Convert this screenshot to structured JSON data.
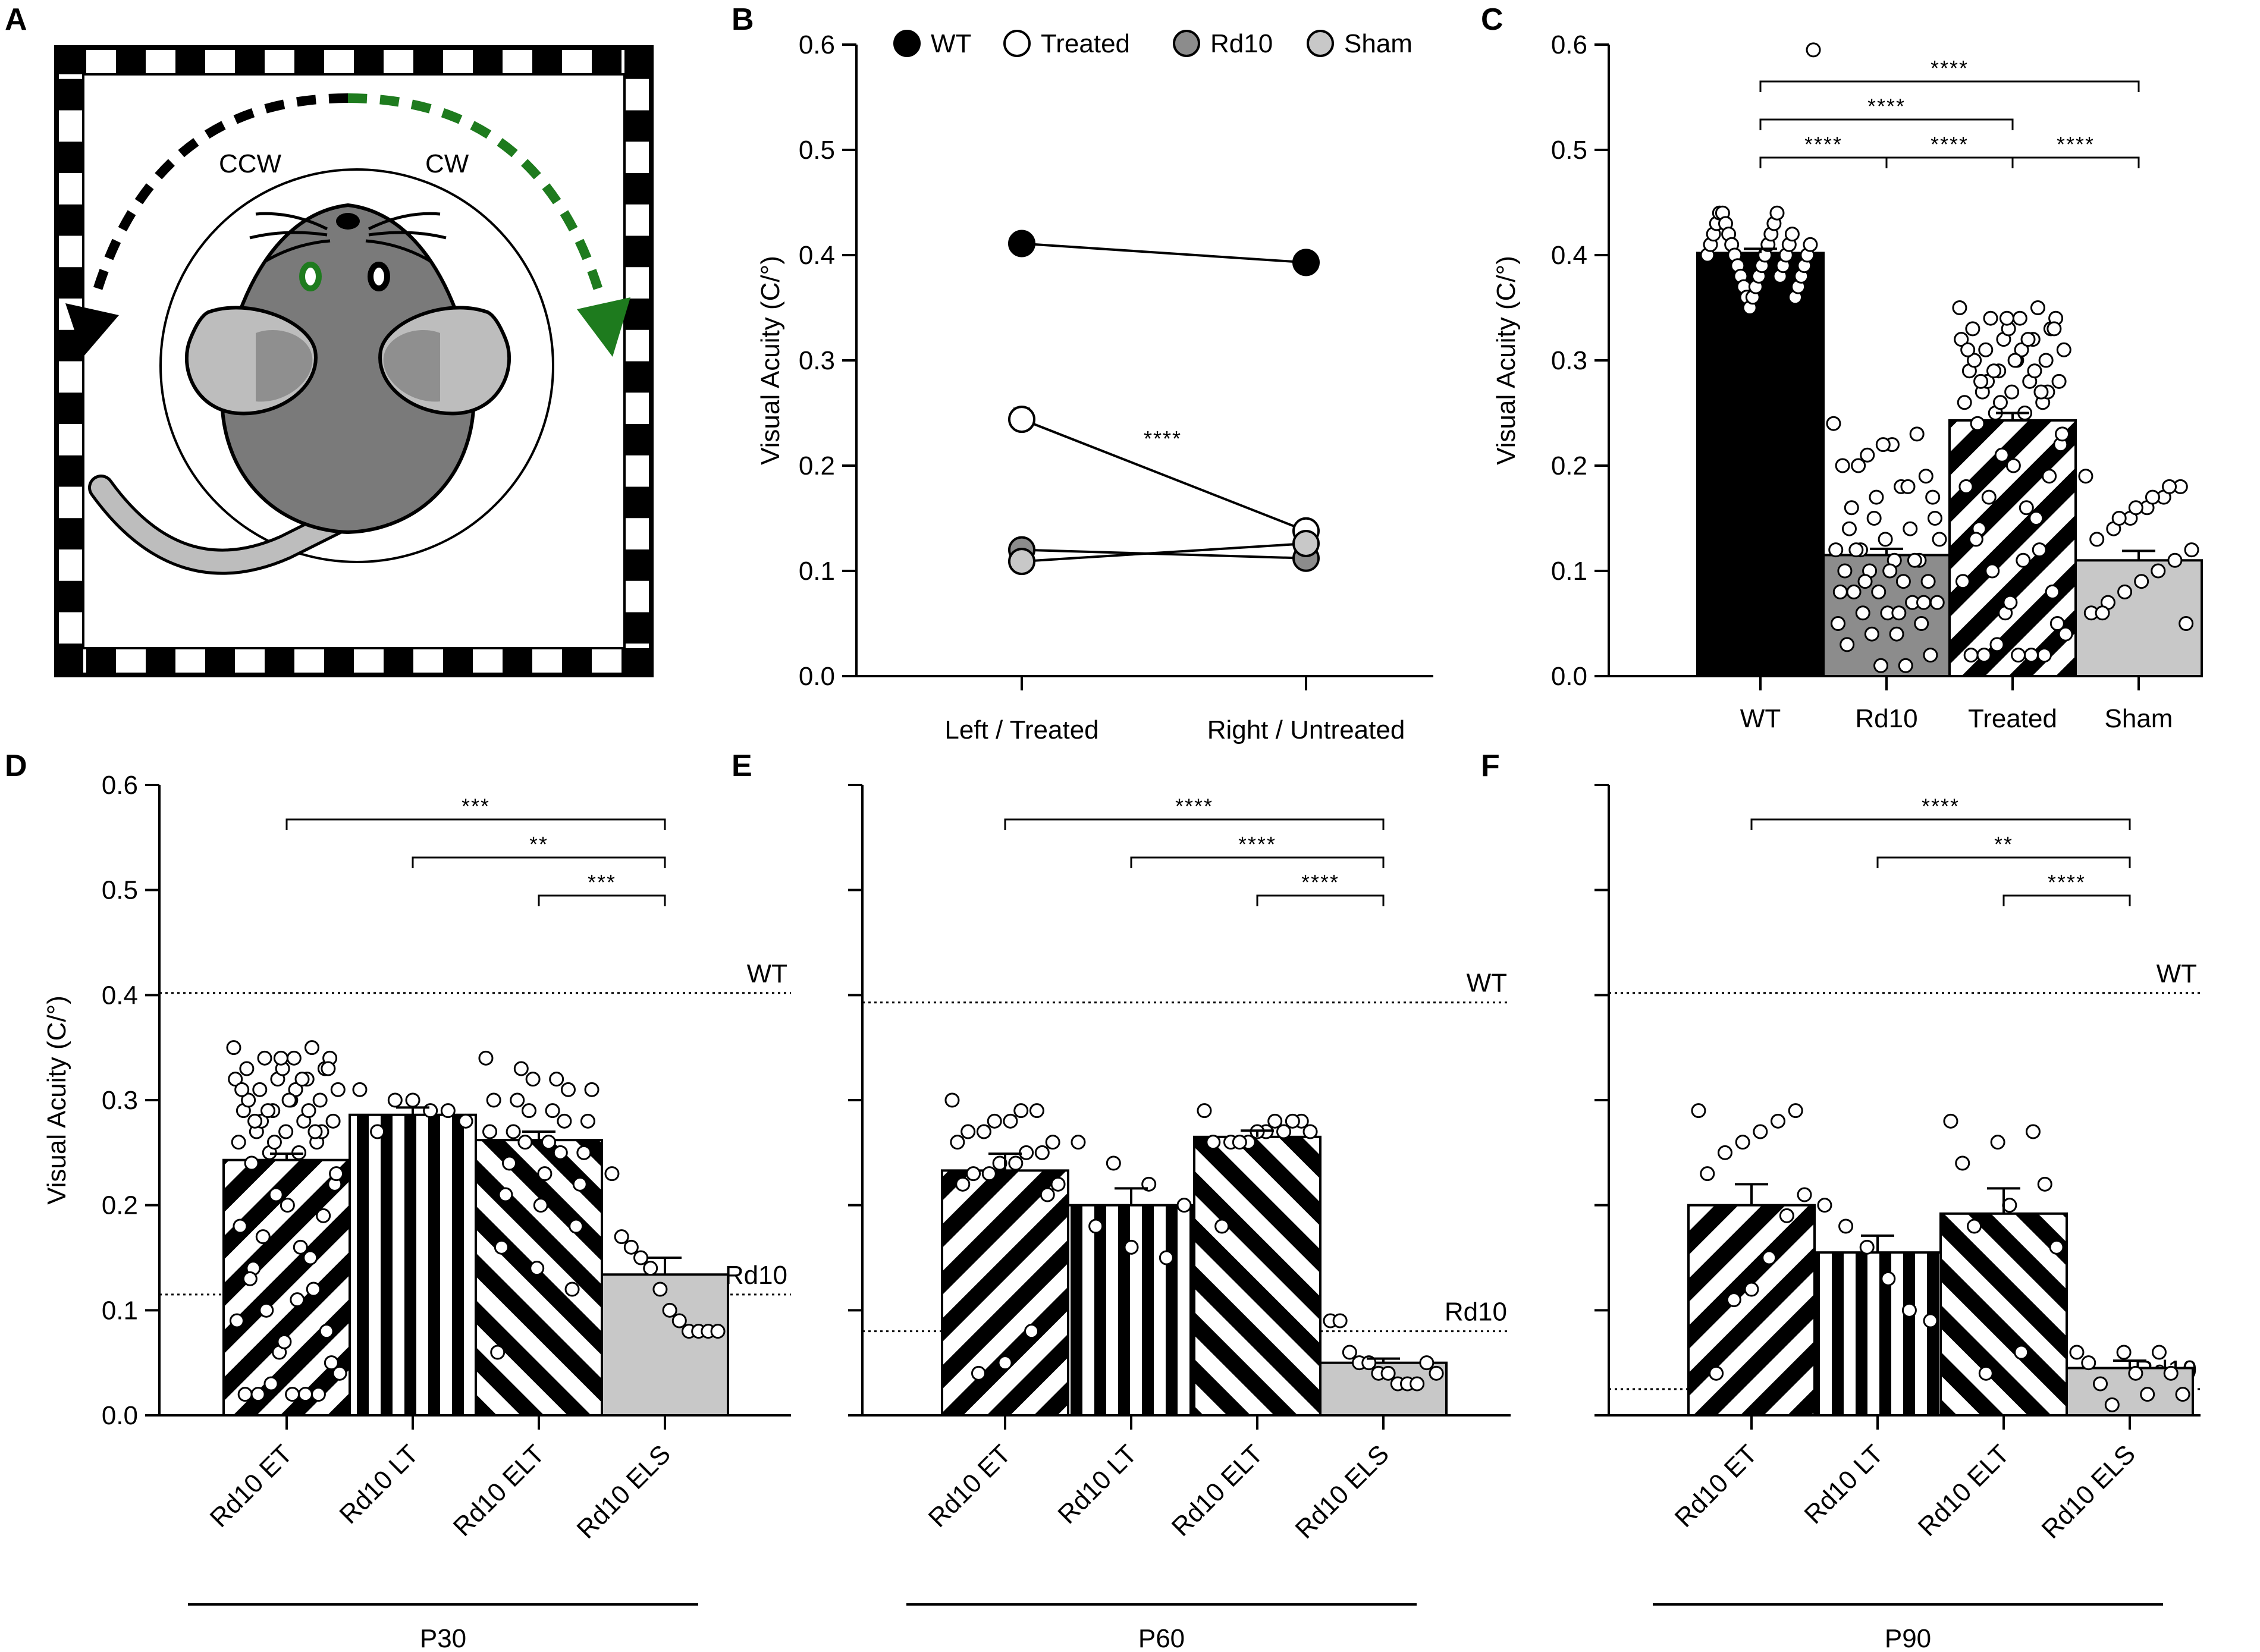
{
  "figure": {
    "panel_letters": [
      "A",
      "B",
      "C",
      "D",
      "E",
      "F"
    ],
    "colors": {
      "wt": "#000000",
      "treated": "#ffffff",
      "rd10": "#8c8c8c",
      "sham": "#c8c8c8",
      "green": "#1e7b1e",
      "mouse_body": "#7a7a7a",
      "mouse_ear": "#bdbdbd"
    }
  },
  "panel_a": {
    "letter": "A",
    "ccw_label": "CCW",
    "cw_label": "CW",
    "icons": [
      "optomotor-drum-icon",
      "mouse-icon",
      "ccw-arrow-icon",
      "cw-arrow-icon"
    ]
  },
  "chart_data": [
    {
      "panel": "B",
      "type": "line",
      "ylabel": "Visual Acuity (C/°)",
      "ylim": [
        0,
        0.6
      ],
      "yticks": [
        "0.0",
        "0.1",
        "0.2",
        "0.3",
        "0.4",
        "0.5",
        "0.6"
      ],
      "categories": [
        "Left / Treated",
        "Right / Untreated"
      ],
      "legend": [
        "WT",
        "Treated",
        "Rd10",
        "Sham"
      ],
      "legend_position": "top",
      "series": [
        {
          "name": "WT",
          "values": [
            0.411,
            0.393
          ],
          "errors": [
            0.008,
            0.006
          ]
        },
        {
          "name": "Treated",
          "values": [
            0.244,
            0.138
          ],
          "errors": [
            0.01,
            0.006
          ]
        },
        {
          "name": "Rd10",
          "values": [
            0.12,
            0.112
          ],
          "errors": [
            0.008,
            0.006
          ]
        },
        {
          "name": "Sham",
          "values": [
            0.109,
            0.126
          ],
          "errors": [
            0.008,
            0.006
          ]
        }
      ],
      "annotation": "****"
    },
    {
      "panel": "C",
      "type": "bar",
      "ylabel": "Visual Acuity (C/°)",
      "ylim": [
        0,
        0.6
      ],
      "yticks": [
        "0.0",
        "0.1",
        "0.2",
        "0.3",
        "0.4",
        "0.5",
        "0.6"
      ],
      "categories": [
        "WT",
        "Rd10",
        "Treated",
        "Sham"
      ],
      "values": [
        0.402,
        0.115,
        0.243,
        0.11
      ],
      "errors": [
        0.004,
        0.006,
        0.007,
        0.009
      ],
      "significance": [
        {
          "from": 0,
          "to": 3,
          "label": "****"
        },
        {
          "from": 0,
          "to": 2,
          "label": "****"
        },
        {
          "from": 0,
          "to": 1,
          "label": "****"
        },
        {
          "from": 1,
          "to": 2,
          "label": "****"
        },
        {
          "from": 2,
          "to": 3,
          "label": "****"
        }
      ],
      "points": [
        [
          0.4,
          0.41,
          0.42,
          0.43,
          0.44,
          0.44,
          0.43,
          0.42,
          0.41,
          0.4,
          0.39,
          0.38,
          0.37,
          0.36,
          0.35,
          0.36,
          0.37,
          0.38,
          0.39,
          0.4,
          0.41,
          0.42,
          0.43,
          0.44,
          0.38,
          0.39,
          0.4,
          0.41,
          0.42,
          0.36,
          0.37,
          0.38,
          0.39,
          0.4,
          0.41,
          0.595
        ],
        [
          0.24,
          0.23,
          0.22,
          0.21,
          0.2,
          0.19,
          0.18,
          0.17,
          0.16,
          0.15,
          0.14,
          0.13,
          0.12,
          0.12,
          0.11,
          0.11,
          0.1,
          0.1,
          0.09,
          0.09,
          0.08,
          0.08,
          0.07,
          0.07,
          0.06,
          0.06,
          0.05,
          0.05,
          0.04,
          0.04,
          0.03,
          0.02,
          0.01,
          0.01,
          0.12,
          0.13,
          0.11,
          0.1,
          0.09,
          0.08,
          0.07,
          0.06,
          0.15,
          0.14,
          0.17,
          0.18,
          0.22,
          0.2
        ],
        [
          0.35,
          0.34,
          0.33,
          0.32,
          0.31,
          0.3,
          0.29,
          0.28,
          0.27,
          0.26,
          0.25,
          0.24,
          0.35,
          0.34,
          0.33,
          0.32,
          0.31,
          0.3,
          0.29,
          0.28,
          0.27,
          0.26,
          0.25,
          0.34,
          0.33,
          0.32,
          0.31,
          0.3,
          0.29,
          0.28,
          0.27,
          0.26,
          0.22,
          0.2,
          0.18,
          0.16,
          0.14,
          0.12,
          0.1,
          0.08,
          0.06,
          0.04,
          0.02,
          0.02,
          0.02,
          0.02,
          0.02,
          0.03,
          0.05,
          0.07,
          0.09,
          0.11,
          0.13,
          0.15,
          0.17,
          0.19,
          0.21,
          0.23,
          0.3,
          0.31,
          0.32,
          0.28,
          0.27,
          0.29,
          0.33,
          0.34
        ],
        [
          0.19,
          0.18,
          0.17,
          0.16,
          0.15,
          0.14,
          0.13,
          0.12,
          0.11,
          0.1,
          0.09,
          0.08,
          0.07,
          0.06,
          0.05,
          0.18,
          0.17,
          0.16,
          0.15,
          0.06
        ]
      ]
    },
    {
      "panel": "D",
      "type": "bar",
      "ylabel": "Visual Acuity (C/°)",
      "ylim": [
        0,
        0.6
      ],
      "yticks": [
        "0.0",
        "0.1",
        "0.2",
        "0.3",
        "0.4",
        "0.5",
        "0.6"
      ],
      "categories": [
        "Rd10 ET",
        "Rd10 LT",
        "Rd10 ELT",
        "Rd10 ELS"
      ],
      "group_label": "P30",
      "values": [
        0.243,
        0.286,
        0.262,
        0.134
      ],
      "errors": [
        0.006,
        0.007,
        0.008,
        0.016
      ],
      "reference_lines": [
        {
          "label": "WT",
          "value": 0.402
        },
        {
          "label": "Rd10",
          "value": 0.115
        }
      ],
      "significance": [
        {
          "from": 0,
          "to": 3,
          "label": "***"
        },
        {
          "from": 1,
          "to": 3,
          "label": "**"
        },
        {
          "from": 2,
          "to": 3,
          "label": "***"
        }
      ],
      "points": [
        [
          0.35,
          0.34,
          0.33,
          0.32,
          0.31,
          0.3,
          0.29,
          0.28,
          0.27,
          0.26,
          0.25,
          0.24,
          0.35,
          0.34,
          0.33,
          0.32,
          0.31,
          0.3,
          0.29,
          0.28,
          0.27,
          0.26,
          0.25,
          0.34,
          0.33,
          0.32,
          0.31,
          0.3,
          0.29,
          0.28,
          0.27,
          0.26,
          0.22,
          0.2,
          0.18,
          0.16,
          0.14,
          0.12,
          0.1,
          0.08,
          0.06,
          0.04,
          0.02,
          0.02,
          0.02,
          0.02,
          0.02,
          0.03,
          0.05,
          0.07,
          0.09,
          0.11,
          0.13,
          0.15,
          0.17,
          0.19,
          0.21,
          0.23,
          0.3,
          0.31,
          0.32,
          0.28,
          0.27,
          0.29,
          0.33,
          0.34
        ],
        [
          0.31,
          0.3,
          0.29,
          0.28,
          0.27,
          0.3,
          0.29
        ],
        [
          0.34,
          0.33,
          0.32,
          0.31,
          0.3,
          0.29,
          0.28,
          0.27,
          0.26,
          0.25,
          0.24,
          0.23,
          0.22,
          0.21,
          0.2,
          0.18,
          0.16,
          0.14,
          0.12,
          0.06,
          0.32,
          0.31,
          0.3,
          0.29,
          0.28,
          0.27,
          0.26,
          0.25
        ],
        [
          0.23,
          0.17,
          0.16,
          0.15,
          0.14,
          0.12,
          0.1,
          0.09,
          0.08,
          0.08,
          0.08,
          0.08
        ]
      ]
    },
    {
      "panel": "E",
      "type": "bar",
      "ylabel": "",
      "ylim": [
        0,
        0.6
      ],
      "categories": [
        "Rd10 ET",
        "Rd10 LT",
        "Rd10 ELT",
        "Rd10 ELS"
      ],
      "group_label": "P60",
      "values": [
        0.233,
        0.2,
        0.265,
        0.05
      ],
      "errors": [
        0.016,
        0.016,
        0.006,
        0.004
      ],
      "reference_lines": [
        {
          "label": "WT",
          "value": 0.393
        },
        {
          "label": "Rd10",
          "value": 0.08
        }
      ],
      "significance": [
        {
          "from": 0,
          "to": 3,
          "label": "****"
        },
        {
          "from": 1,
          "to": 3,
          "label": "****"
        },
        {
          "from": 2,
          "to": 3,
          "label": "****"
        }
      ],
      "points": [
        [
          0.3,
          0.29,
          0.28,
          0.27,
          0.26,
          0.25,
          0.24,
          0.23,
          0.22,
          0.21,
          0.29,
          0.28,
          0.27,
          0.26,
          0.25,
          0.24,
          0.23,
          0.22,
          0.08,
          0.05,
          0.04
        ],
        [
          0.26,
          0.24,
          0.22,
          0.2,
          0.18,
          0.16,
          0.15
        ],
        [
          0.29,
          0.28,
          0.27,
          0.27,
          0.26,
          0.26,
          0.26,
          0.27,
          0.28,
          0.28,
          0.27,
          0.26,
          0.18
        ],
        [
          0.09,
          0.09,
          0.06,
          0.05,
          0.05,
          0.04,
          0.04,
          0.03,
          0.03,
          0.03,
          0.05,
          0.04
        ]
      ]
    },
    {
      "panel": "F",
      "type": "bar",
      "ylabel": "",
      "ylim": [
        0,
        0.6
      ],
      "categories": [
        "Rd10 ET",
        "Rd10 LT",
        "Rd10 ELT",
        "Rd10 ELS"
      ],
      "group_label": "P90",
      "values": [
        0.2,
        0.155,
        0.192,
        0.045
      ],
      "errors": [
        0.02,
        0.016,
        0.024,
        0.007
      ],
      "reference_lines": [
        {
          "label": "WT",
          "value": 0.402
        },
        {
          "label": "Rd10",
          "value": 0.025
        }
      ],
      "significance": [
        {
          "from": 0,
          "to": 3,
          "label": "****"
        },
        {
          "from": 1,
          "to": 3,
          "label": "**"
        },
        {
          "from": 2,
          "to": 3,
          "label": "****"
        }
      ],
      "points": [
        [
          0.29,
          0.29,
          0.28,
          0.27,
          0.26,
          0.25,
          0.23,
          0.21,
          0.19,
          0.15,
          0.12,
          0.11,
          0.04
        ],
        [
          0.2,
          0.18,
          0.16,
          0.13,
          0.1,
          0.09
        ],
        [
          0.28,
          0.27,
          0.26,
          0.24,
          0.22,
          0.2,
          0.18,
          0.16,
          0.06,
          0.04
        ],
        [
          0.06,
          0.06,
          0.06,
          0.05,
          0.04,
          0.04,
          0.03,
          0.02,
          0.02,
          0.01
        ]
      ]
    }
  ]
}
